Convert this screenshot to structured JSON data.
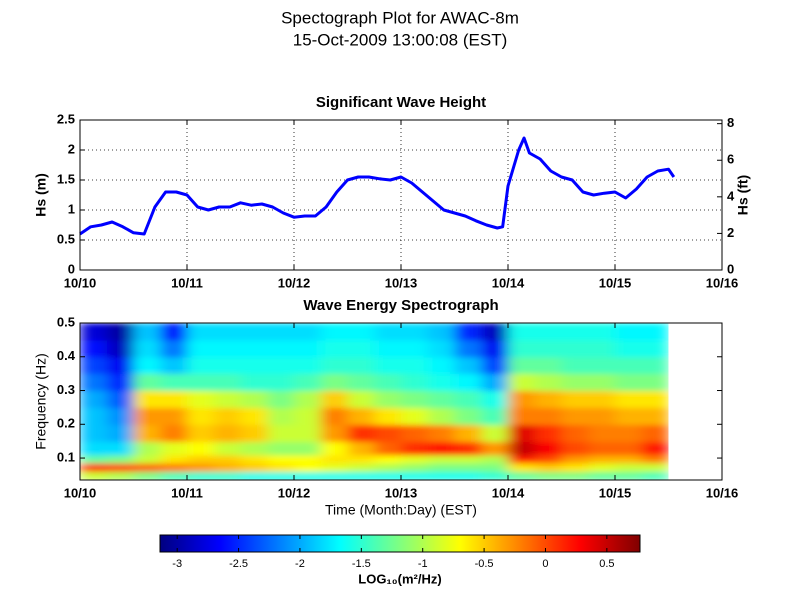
{
  "title": "Spectograph Plot for AWAC-8m",
  "subtitle": "15-Oct-2009 13:00:08 (EST)",
  "chart_data": [
    {
      "type": "line",
      "title": "Significant Wave Height",
      "ylabel": "Hs (m)",
      "y2label": "Hs (ft)",
      "color": "#0000ff",
      "grid": true,
      "xlim": [
        10,
        16
      ],
      "xticks": [
        {
          "value": 10,
          "label": "10/10"
        },
        {
          "value": 11,
          "label": "10/11"
        },
        {
          "value": 12,
          "label": "10/12"
        },
        {
          "value": 13,
          "label": "10/13"
        },
        {
          "value": 14,
          "label": "10/14"
        },
        {
          "value": 15,
          "label": "10/15"
        },
        {
          "value": 16,
          "label": "10/16"
        }
      ],
      "ylim": [
        0,
        2.5
      ],
      "yticks": [
        0,
        0.5,
        1,
        1.5,
        2,
        2.5
      ],
      "y2lim": [
        0,
        8.2
      ],
      "y2ticks": [
        0,
        2,
        4,
        6,
        8
      ],
      "x": [
        10.0,
        10.1,
        10.2,
        10.3,
        10.4,
        10.5,
        10.6,
        10.7,
        10.8,
        10.9,
        11.0,
        11.1,
        11.2,
        11.3,
        11.4,
        11.5,
        11.6,
        11.7,
        11.8,
        11.9,
        12.0,
        12.1,
        12.2,
        12.3,
        12.4,
        12.5,
        12.6,
        12.7,
        12.8,
        12.9,
        13.0,
        13.1,
        13.2,
        13.3,
        13.4,
        13.5,
        13.6,
        13.7,
        13.8,
        13.9,
        13.95,
        14.0,
        14.1,
        14.15,
        14.2,
        14.3,
        14.4,
        14.5,
        14.6,
        14.7,
        14.8,
        14.9,
        15.0,
        15.1,
        15.2,
        15.3,
        15.4,
        15.5,
        15.55
      ],
      "values": [
        0.6,
        0.72,
        0.75,
        0.8,
        0.72,
        0.62,
        0.6,
        1.05,
        1.3,
        1.3,
        1.25,
        1.05,
        1.0,
        1.05,
        1.05,
        1.12,
        1.08,
        1.1,
        1.05,
        0.95,
        0.88,
        0.9,
        0.9,
        1.05,
        1.3,
        1.5,
        1.55,
        1.55,
        1.52,
        1.5,
        1.55,
        1.45,
        1.3,
        1.15,
        1.0,
        0.95,
        0.9,
        0.82,
        0.75,
        0.7,
        0.72,
        1.4,
        2.0,
        2.2,
        1.95,
        1.85,
        1.65,
        1.55,
        1.5,
        1.3,
        1.25,
        1.28,
        1.3,
        1.2,
        1.35,
        1.55,
        1.65,
        1.68,
        1.55
      ]
    },
    {
      "type": "heatmap",
      "title": "Wave Energy Spectrograph",
      "xlabel": "Time (Month:Day) (EST)",
      "ylabel": "Frequency (Hz)",
      "cmap": "jet",
      "xlim": [
        10,
        16
      ],
      "xticks": [
        {
          "value": 10,
          "label": "10/10"
        },
        {
          "value": 11,
          "label": "10/11"
        },
        {
          "value": 12,
          "label": "10/12"
        },
        {
          "value": 13,
          "label": "10/13"
        },
        {
          "value": 14,
          "label": "10/14"
        },
        {
          "value": 15,
          "label": "10/15"
        },
        {
          "value": 16,
          "label": "10/16"
        }
      ],
      "ylim": [
        0.035,
        0.5
      ],
      "yticks": [
        0.1,
        0.2,
        0.3,
        0.4,
        0.5
      ],
      "xbins": [
        10.0,
        10.25,
        10.5,
        10.75,
        11.0,
        11.25,
        11.5,
        11.75,
        12.0,
        12.25,
        12.5,
        12.75,
        13.0,
        13.25,
        13.5,
        13.75,
        14.0,
        14.25,
        14.5,
        14.75,
        15.0,
        15.25,
        15.5
      ],
      "ybins": [
        0.035,
        0.06,
        0.085,
        0.11,
        0.15,
        0.2,
        0.25,
        0.3,
        0.35,
        0.4,
        0.45,
        0.5
      ],
      "z": [
        [
          -0.9,
          -1.0,
          -1.2,
          -1.4,
          -1.5,
          -1.5,
          -1.6,
          -1.6,
          -1.6,
          -1.6,
          -1.6,
          -1.6,
          -1.6,
          -1.6,
          -1.6,
          -1.5,
          -1.3,
          -1.2,
          -1.2,
          -1.3,
          -1.3,
          -1.4
        ],
        [
          0.1,
          0.0,
          -0.1,
          -0.2,
          -0.3,
          -0.4,
          -0.5,
          -0.6,
          -0.7,
          -0.8,
          -0.9,
          -1.0,
          -1.1,
          -1.2,
          -1.2,
          -1.2,
          -0.6,
          -0.5,
          -0.6,
          -0.8,
          -0.9,
          -0.9
        ],
        [
          -1.3,
          -1.2,
          -0.9,
          -0.6,
          -0.5,
          -0.5,
          -0.6,
          -0.7,
          -0.7,
          -0.6,
          -0.6,
          -0.7,
          -0.8,
          -0.9,
          -0.9,
          -1.0,
          0.2,
          0.0,
          -0.3,
          -0.4,
          -0.4,
          -0.2
        ],
        [
          -1.8,
          -1.8,
          -1.0,
          -0.8,
          -0.7,
          -0.9,
          -1.0,
          -1.1,
          -1.1,
          -0.7,
          -0.4,
          -0.1,
          0.1,
          0.2,
          0.1,
          -0.3,
          0.5,
          0.3,
          0.0,
          -0.1,
          -0.1,
          0.2
        ],
        [
          -1.9,
          -2.0,
          -0.4,
          -0.2,
          -0.5,
          -0.4,
          -0.5,
          -0.9,
          -0.9,
          -0.3,
          0.1,
          0.0,
          -0.1,
          -0.2,
          -0.4,
          -0.9,
          0.4,
          0.1,
          -0.1,
          -0.2,
          -0.2,
          -0.1
        ],
        [
          -1.9,
          -2.1,
          -0.3,
          -0.3,
          -0.6,
          -0.5,
          -0.6,
          -1.0,
          -0.9,
          -0.2,
          -0.4,
          -0.6,
          -0.8,
          -1.0,
          -1.2,
          -1.4,
          -0.2,
          -0.2,
          -0.3,
          -0.3,
          -0.4,
          -0.4
        ],
        [
          -2.0,
          -2.3,
          -0.6,
          -0.6,
          -0.8,
          -0.9,
          -1.0,
          -1.2,
          -1.0,
          -0.5,
          -0.9,
          -1.1,
          -1.2,
          -1.3,
          -1.4,
          -1.6,
          -0.3,
          -0.4,
          -0.5,
          -0.5,
          -0.6,
          -0.6
        ],
        [
          -2.2,
          -2.5,
          -1.3,
          -1.4,
          -1.4,
          -1.4,
          -1.5,
          -1.5,
          -1.4,
          -1.2,
          -1.3,
          -1.4,
          -1.5,
          -1.6,
          -1.7,
          -2.0,
          -0.9,
          -1.0,
          -1.1,
          -1.1,
          -1.2,
          -1.2
        ],
        [
          -2.4,
          -2.7,
          -1.7,
          -1.9,
          -1.6,
          -1.6,
          -1.6,
          -1.6,
          -1.6,
          -1.5,
          -1.5,
          -1.6,
          -1.6,
          -1.7,
          -1.9,
          -2.4,
          -1.3,
          -1.3,
          -1.4,
          -1.4,
          -1.4,
          -1.4
        ],
        [
          -2.6,
          -2.9,
          -1.8,
          -2.2,
          -1.7,
          -1.7,
          -1.7,
          -1.7,
          -1.7,
          -1.6,
          -1.6,
          -1.7,
          -1.7,
          -1.8,
          -2.2,
          -2.7,
          -1.5,
          -1.5,
          -1.5,
          -1.5,
          -1.6,
          -1.6
        ],
        [
          -2.8,
          -3.0,
          -1.9,
          -2.6,
          -1.8,
          -1.8,
          -1.8,
          -1.8,
          -1.8,
          -1.7,
          -1.7,
          -1.8,
          -1.8,
          -1.9,
          -2.5,
          -2.9,
          -1.6,
          -1.6,
          -1.6,
          -1.6,
          -1.7,
          -1.7
        ]
      ],
      "colorbar": {
        "label": "LOG₁₀(m²/Hz)",
        "clim": [
          -3.14,
          0.77
        ],
        "ticks": [
          -3,
          -2.5,
          -2,
          -1.5,
          -1,
          -0.5,
          0,
          0.5
        ]
      }
    }
  ]
}
